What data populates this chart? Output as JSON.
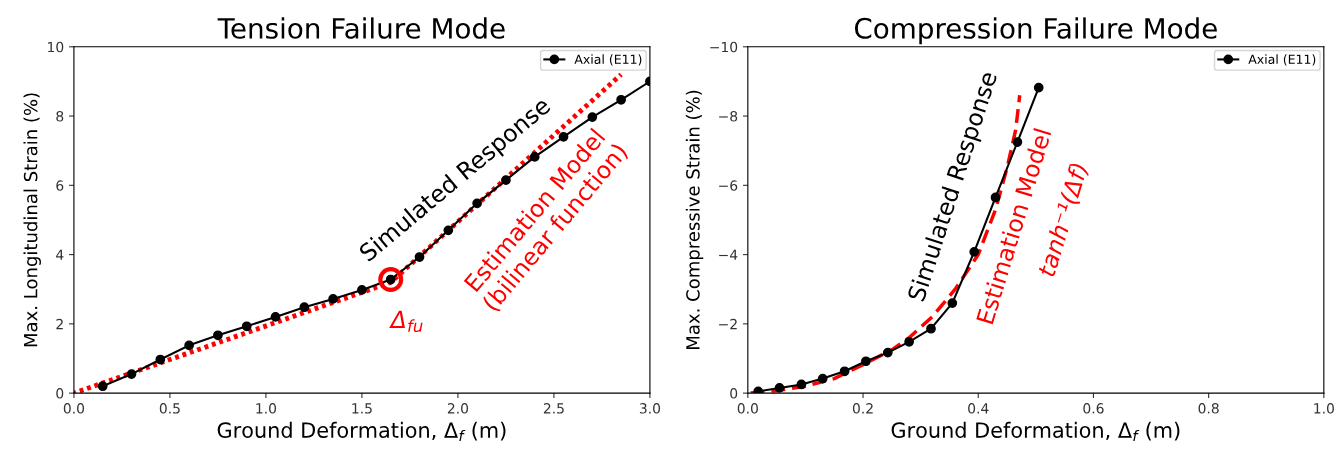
{
  "chart_data": [
    {
      "type": "line",
      "title": "Tension Failure Mode",
      "xlabel": "Ground Deformation, Δ$_{f}$ (m)",
      "ylabel": "Max. Longitudinal Strain (%)",
      "xlim": [
        0,
        3
      ],
      "ylim": [
        0,
        10
      ],
      "xticks": [
        {
          "value": 0,
          "label": "0.0"
        },
        0.5,
        {
          "value": 1,
          "label": "1.0"
        },
        1.5,
        {
          "value": 2,
          "label": "2.0"
        },
        2.5,
        {
          "value": 3,
          "label": "3.0"
        }
      ],
      "yticks": [
        0,
        2,
        4,
        6,
        8,
        10
      ],
      "grid": false,
      "legend": "top right",
      "series": [
        {
          "name": "Axial (E11)",
          "color": "#000000",
          "marker": "circle",
          "line_style": "solid",
          "x": [
            0.15,
            0.3,
            0.45,
            0.6,
            0.75,
            0.9,
            1.05,
            1.2,
            1.35,
            1.5,
            1.65,
            1.8,
            1.95,
            2.1,
            2.25,
            2.4,
            2.55,
            2.7,
            2.85,
            3.0
          ],
          "values": [
            0.2,
            0.55,
            0.97,
            1.38,
            1.67,
            1.93,
            2.2,
            2.48,
            2.72,
            2.98,
            3.28,
            3.93,
            4.7,
            5.48,
            6.15,
            6.82,
            7.4,
            7.97,
            8.47,
            9.0
          ]
        },
        {
          "color": "#ff0000",
          "marker": "none",
          "line_style": "dotted",
          "x": [
            0,
            1.65,
            2.85
          ],
          "values": [
            0,
            3.2,
            9.2
          ]
        }
      ],
      "annotations": [
        {
          "text": "Simulated Response",
          "x": 2.1,
          "y": 5.48
        },
        "Estimation Model\n(bilinear function)",
        {
          "text": "Δ$_{fu}$",
          "x": 1.65,
          "y": 3.28
        }
      ]
    },
    {
      "type": "line",
      "title": "Compression Failure Mode",
      "xlabel": "Ground Deformation, Δ$_{f}$ (m)",
      "ylabel": "Max. Compressive Strain (%)",
      "xlim": [
        0,
        1
      ],
      "ylim": [
        0,
        -10
      ],
      "xticks": [
        {
          "value": 0,
          "label": "0.0"
        },
        0.2,
        0.4,
        0.6,
        0.8,
        {
          "value": 1,
          "label": "1.0"
        }
      ],
      "yticks": [
        0,
        {
          "value": -2,
          "label": "−2"
        },
        {
          "value": -4,
          "label": "−4"
        },
        {
          "value": -6,
          "label": "−6"
        },
        {
          "value": -8,
          "label": "−8"
        },
        {
          "value": -10,
          "label": "−10"
        }
      ],
      "grid": false,
      "legend": "top right",
      "series": [
        {
          "name": "Axial (E11)",
          "color": "#000000",
          "marker": "circle",
          "line_style": "solid",
          "x": [
            0.018,
            0.055,
            0.093,
            0.13,
            0.168,
            0.205,
            0.243,
            0.28,
            0.318,
            0.355,
            0.393,
            0.43,
            0.468,
            0.505
          ],
          "values": [
            -0.05,
            -0.15,
            -0.25,
            -0.42,
            -0.63,
            -0.92,
            -1.17,
            -1.48,
            -1.86,
            -2.6,
            -4.08,
            -5.65,
            -7.25,
            -8.82
          ]
        },
        {
          "color": "#ff0000",
          "marker": "none",
          "line_style": "dashed",
          "x": [
            0,
            0.05,
            0.1,
            0.15,
            0.2,
            0.25,
            0.28,
            0.32,
            0.36,
            0.4,
            0.43,
            0.45,
            0.465,
            0.472
          ],
          "values": [
            0,
            -0.07,
            -0.2,
            -0.42,
            -0.82,
            -1.25,
            -1.6,
            -2.2,
            -3.0,
            -4.0,
            -5.3,
            -6.5,
            -7.6,
            -8.6
          ]
        }
      ],
      "annotations": [
        {
          "text": "Simulated Response",
          "x": 0.43,
          "y": -5.65
        },
        "Estimation Model",
        "tanh⁻¹(Δf)"
      ]
    }
  ]
}
